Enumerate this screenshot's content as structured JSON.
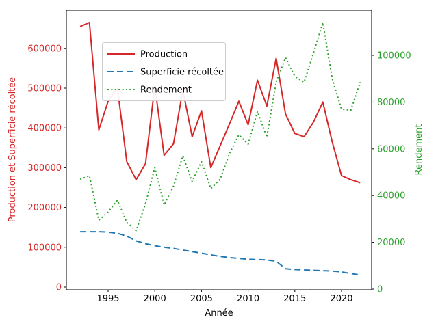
{
  "figure": {
    "title": "",
    "x_axis": {
      "label": "Année",
      "ticks": [
        1995,
        2000,
        2005,
        2010,
        2015,
        2020
      ]
    },
    "y_axis_left": {
      "label": "Production et Superficie récoltée",
      "color": "#d62728",
      "ticks": [
        0,
        100000,
        200000,
        300000,
        400000,
        500000,
        600000
      ]
    },
    "y_axis_right": {
      "label": "Rendement",
      "color": "#2ca02c",
      "ticks": [
        0,
        20000,
        40000,
        60000,
        80000,
        100000
      ]
    },
    "legend": {
      "items": [
        {
          "label": "Production",
          "color": "#d62728",
          "style": "solid"
        },
        {
          "label": "Superficie récoltée",
          "color": "#1f77b4",
          "style": "dashed"
        },
        {
          "label": "Rendement",
          "color": "#2ca02c",
          "style": "dotted"
        }
      ]
    }
  },
  "chart_data": {
    "type": "line",
    "title": "",
    "xlabel": "Année",
    "ylabel_left": "Production et Superficie récoltée",
    "ylabel_right": "Rendement",
    "grid": false,
    "legend_position": "upper left",
    "xlim": [
      1990.5,
      2023.5
    ],
    "ylim_left": [
      0,
      695000
    ],
    "ylim_right": [
      0,
      119000
    ],
    "x": [
      1992,
      1993,
      1994,
      1995,
      1996,
      1997,
      1998,
      1999,
      2000,
      2001,
      2002,
      2003,
      2004,
      2005,
      2006,
      2007,
      2008,
      2009,
      2010,
      2011,
      2012,
      2013,
      2014,
      2015,
      2016,
      2017,
      2018,
      2019,
      2020,
      2021,
      2022
    ],
    "series": [
      {
        "name": "Production",
        "axis": "left",
        "color": "#d62728",
        "style": "solid",
        "values": [
          655000,
          665000,
          395000,
          467000,
          500000,
          315000,
          270000,
          310000,
          505000,
          331000,
          360000,
          495000,
          378000,
          443000,
          300000,
          355000,
          410000,
          467000,
          408000,
          520000,
          455000,
          575000,
          435000,
          386000,
          378000,
          415000,
          465000,
          365000,
          280000,
          270000,
          262000
        ]
      },
      {
        "name": "Superficie récoltée",
        "axis": "left",
        "color": "#1f77b4",
        "style": "dashed",
        "values": [
          139000,
          139000,
          139000,
          138000,
          135000,
          128000,
          116000,
          109000,
          104000,
          100000,
          97000,
          93000,
          89000,
          85000,
          81000,
          77000,
          74000,
          72000,
          70000,
          69000,
          68000,
          65000,
          46000,
          44000,
          43000,
          42000,
          41000,
          40000,
          38000,
          34000,
          30000
        ]
      },
      {
        "name": "Rendement",
        "axis": "right",
        "color": "#2ca02c",
        "style": "dotted",
        "values": [
          47000,
          48500,
          29500,
          33000,
          38000,
          28500,
          25000,
          36500,
          52000,
          36000,
          44000,
          57000,
          46000,
          54500,
          43000,
          47000,
          58000,
          66000,
          62000,
          76000,
          65000,
          88500,
          99000,
          91000,
          88500,
          101000,
          114000,
          90000,
          77000,
          76500,
          88500
        ]
      }
    ]
  }
}
